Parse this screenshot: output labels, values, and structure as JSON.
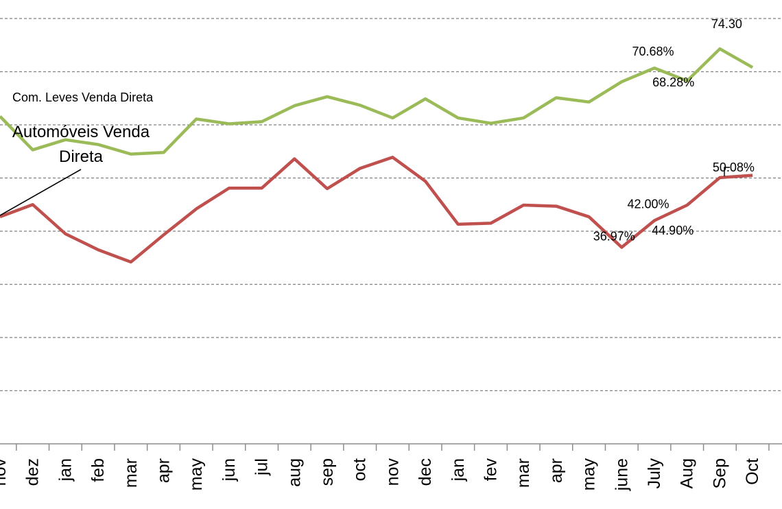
{
  "chart_data": {
    "type": "line",
    "ylim": [
      0,
      82
    ],
    "grid": true,
    "categories": [
      "nov",
      "dez",
      "jan",
      "feb",
      "mar",
      "apr",
      "may",
      "jun",
      "jul",
      "aug",
      "sep",
      "oct",
      "nov",
      "dec",
      "jan",
      "fev",
      "mar",
      "apr",
      "may",
      "june",
      "July",
      "Aug",
      "Sep",
      "Oct"
    ],
    "series": [
      {
        "name": "Com. Leves Venda Direta",
        "color": "#9bbb59",
        "values": [
          61.6,
          55.3,
          57.2,
          56.3,
          54.5,
          54.8,
          61.1,
          60.2,
          60.6,
          63.6,
          65.3,
          63.7,
          61.3,
          64.9,
          61.3,
          60.3,
          61.3,
          65.1,
          64.3,
          68.1,
          70.68,
          68.28,
          74.3,
          70.8
        ],
        "labels": [
          {
            "index": 20,
            "text": "70.68%"
          },
          {
            "index": 21,
            "text": "68.28%"
          },
          {
            "index": 22,
            "text": "74.30"
          }
        ]
      },
      {
        "name": "Automóveis Venda Direta",
        "color": "#c0504d",
        "values": [
          42.7,
          45.0,
          39.5,
          36.5,
          34.2,
          39.3,
          44.2,
          48.1,
          48.1,
          53.6,
          48.0,
          51.8,
          53.9,
          49.4,
          41.3,
          41.5,
          44.9,
          44.7,
          42.7,
          36.97,
          42.0,
          44.9,
          50.08,
          50.5
        ],
        "labels": [
          {
            "index": 19,
            "text": "36.97%"
          },
          {
            "index": 20,
            "text": "42.00%"
          },
          {
            "index": 21,
            "text": "44.90%"
          },
          {
            "index": 22,
            "text": "50.08%"
          }
        ]
      }
    ]
  }
}
